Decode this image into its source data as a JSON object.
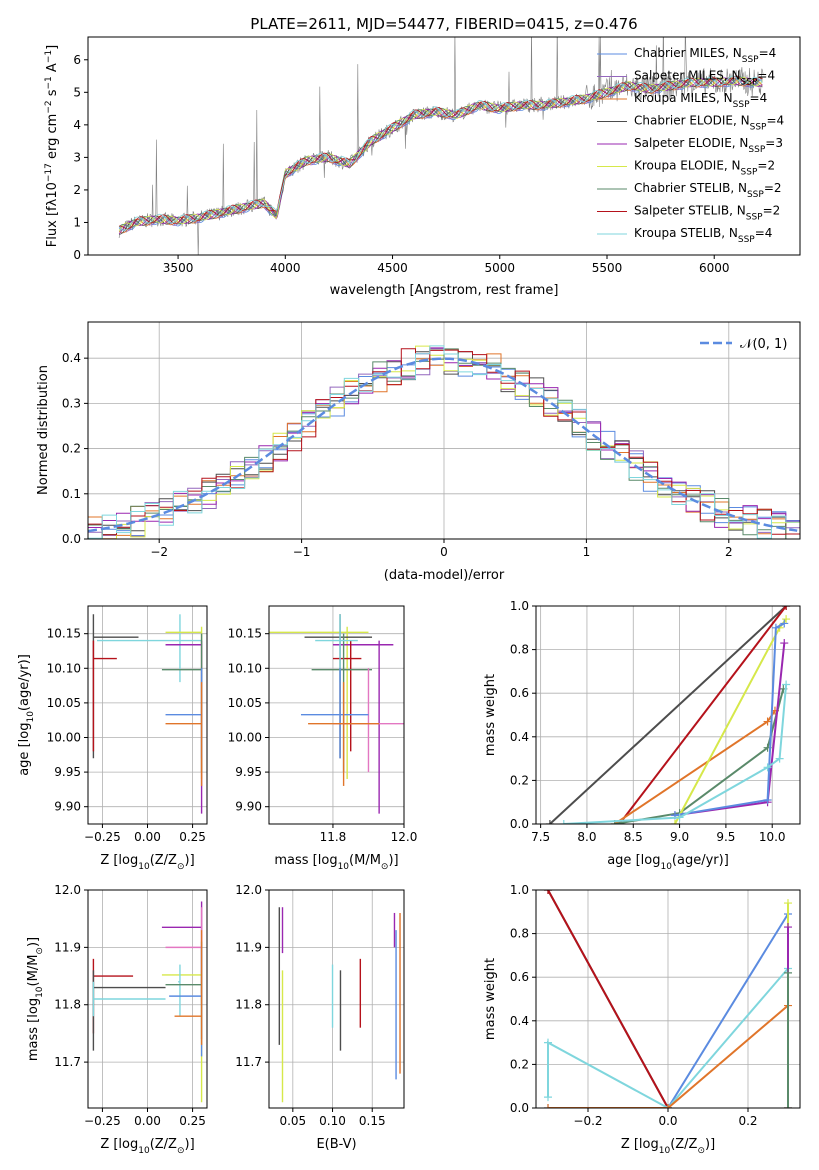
{
  "figure": {
    "title": "PLATE=2611, MJD=54477, FIBERID=0415, z=0.476"
  },
  "colors": {
    "Chabrier MILES": "#5b8be0",
    "Salpeter MILES": "#9467bd",
    "Kroupa MILES": "#e0752a",
    "Chabrier ELODIE": "#4d4d4d",
    "Salpeter ELODIE": "#9a27b0",
    "Kroupa ELODIE": "#d6e84a",
    "Chabrier STELIB": "#5a8a6a",
    "Salpeter STELIB": "#b5121b",
    "Kroupa STELIB": "#7fd6dd",
    "extra_pink": "#e377c2",
    "grid": "#b0b0b0",
    "spectrum": "#808080"
  },
  "chart_data": [
    {
      "type": "line",
      "panel": "spectrum",
      "xlabel": "wavelength [Angstrom, rest frame]",
      "ylabel_parts": [
        "Flux [",
        "f",
        "λ",
        "10",
        "−17",
        " erg cm",
        "−2",
        " s",
        "−1",
        " A",
        "−1",
        "]"
      ],
      "xlim": [
        3080,
        6400
      ],
      "ylim": [
        0,
        6.7
      ],
      "xticks": [
        3500,
        4000,
        4500,
        5000,
        5500,
        6000
      ],
      "yticks": [
        0,
        1,
        2,
        3,
        4,
        5,
        6
      ],
      "grid": false,
      "legend_position": "right",
      "series": [
        {
          "model": "Chabrier MILES",
          "label_main": "Chabrier MILES, N",
          "label_sub": "SSP",
          "label_tail": "=4"
        },
        {
          "model": "Salpeter MILES",
          "label_main": "Salpeter MILES, N",
          "label_sub": "SSP",
          "label_tail": "=4"
        },
        {
          "model": "Kroupa MILES",
          "label_main": "Kroupa MILES, N",
          "label_sub": "SSP",
          "label_tail": "=4"
        },
        {
          "model": "Chabrier ELODIE",
          "label_main": "Chabrier ELODIE, N",
          "label_sub": "SSP",
          "label_tail": "=4"
        },
        {
          "model": "Salpeter ELODIE",
          "label_main": "Salpeter ELODIE, N",
          "label_sub": "SSP",
          "label_tail": "=3"
        },
        {
          "model": "Kroupa ELODIE",
          "label_main": "Kroupa ELODIE, N",
          "label_sub": "SSP",
          "label_tail": "=2"
        },
        {
          "model": "Chabrier STELIB",
          "label_main": "Chabrier STELIB, N",
          "label_sub": "SSP",
          "label_tail": "=2"
        },
        {
          "model": "Salpeter STELIB",
          "label_main": "Salpeter STELIB, N",
          "label_sub": "SSP",
          "label_tail": "=2"
        },
        {
          "model": "Kroupa STELIB",
          "label_main": "Kroupa STELIB, N",
          "label_sub": "SSP",
          "label_tail": "=4"
        }
      ],
      "continuum": [
        [
          3225,
          0.75
        ],
        [
          3300,
          1.0
        ],
        [
          3400,
          1.1
        ],
        [
          3500,
          1.05
        ],
        [
          3600,
          1.15
        ],
        [
          3700,
          1.3
        ],
        [
          3800,
          1.45
        ],
        [
          3900,
          1.6
        ],
        [
          3960,
          1.2
        ],
        [
          4000,
          2.5
        ],
        [
          4100,
          2.9
        ],
        [
          4200,
          3.0
        ],
        [
          4300,
          2.8
        ],
        [
          4400,
          3.5
        ],
        [
          4500,
          3.9
        ],
        [
          4600,
          4.3
        ],
        [
          4700,
          4.4
        ],
        [
          4800,
          4.3
        ],
        [
          4900,
          4.6
        ],
        [
          5000,
          4.5
        ],
        [
          5100,
          4.6
        ],
        [
          5200,
          4.6
        ],
        [
          5300,
          4.7
        ],
        [
          5400,
          4.8
        ],
        [
          5500,
          5.0
        ],
        [
          5600,
          5.2
        ],
        [
          5700,
          5.1
        ],
        [
          5800,
          5.2
        ],
        [
          5900,
          5.3
        ],
        [
          6000,
          5.3
        ],
        [
          6100,
          5.35
        ],
        [
          6200,
          5.3
        ],
        [
          6230,
          5.3
        ]
      ]
    },
    {
      "type": "line",
      "panel": "residual histogram",
      "xlabel": "(data-model)/error",
      "ylabel": "Normed distribution",
      "xlim": [
        -2.5,
        2.5
      ],
      "ylim": [
        0,
        0.48
      ],
      "xticks": [
        -2,
        -1,
        0,
        1,
        2
      ],
      "yticks": [
        0.0,
        0.1,
        0.2,
        0.3,
        0.4
      ],
      "grid": true,
      "legend_position": "top-right",
      "legend_label": "𝒩(0, 1)",
      "bin_width": 0.1,
      "gaussian": {
        "mean": 0,
        "sigma": 1
      }
    },
    {
      "type": "scatter",
      "panel": "age vs metallicity",
      "xlabel_parts": [
        "Z [log",
        "10",
        "(Z/Z",
        "⊙",
        ")]"
      ],
      "ylabel_parts": [
        "age  [log",
        "10",
        "(age/yr)]"
      ],
      "xlim": [
        -0.33,
        0.33
      ],
      "ylim": [
        9.875,
        10.19
      ],
      "xticks": [
        -0.25,
        0.0,
        0.25
      ],
      "xticklabels": [
        "−0.25",
        "0.00",
        "0.25"
      ],
      "yticks": [
        9.9,
        9.95,
        10.0,
        10.05,
        10.1,
        10.15
      ],
      "grid": true,
      "points": [
        {
          "model": "Chabrier ELODIE",
          "x": -0.3,
          "y": 10.145,
          "x_lo": -0.3,
          "x_hi": -0.05,
          "y_lo": 9.97,
          "y_hi": 10.178
        },
        {
          "model": "Salpeter STELIB",
          "x": -0.3,
          "y": 10.114,
          "x_lo": -0.3,
          "x_hi": -0.17,
          "y_lo": 9.98,
          "y_hi": 10.14
        },
        {
          "model": "Kroupa STELIB",
          "x": 0.18,
          "y": 10.14,
          "x_lo": -0.28,
          "x_hi": 0.3,
          "y_lo": 10.08,
          "y_hi": 10.178
        },
        {
          "model": "Kroupa ELODIE",
          "x": 0.3,
          "y": 10.152,
          "x_lo": 0.1,
          "x_hi": 0.3,
          "y_lo": 9.94,
          "y_hi": 10.16
        },
        {
          "model": "Salpeter ELODIE",
          "x": 0.3,
          "y": 10.134,
          "x_lo": 0.1,
          "x_hi": 0.3,
          "y_lo": 9.89,
          "y_hi": 10.14
        },
        {
          "model": "Chabrier STELIB",
          "x": 0.3,
          "y": 10.098,
          "x_lo": 0.08,
          "x_hi": 0.3,
          "y_lo": 9.95,
          "y_hi": 10.15
        },
        {
          "model": "Chabrier MILES",
          "x": 0.3,
          "y": 10.033,
          "x_lo": 0.1,
          "x_hi": 0.3,
          "y_lo": 9.97,
          "y_hi": 10.1
        },
        {
          "model": "Kroupa MILES",
          "x": 0.3,
          "y": 10.02,
          "x_lo": 0.1,
          "x_hi": 0.3,
          "y_lo": 9.93,
          "y_hi": 10.08
        }
      ]
    },
    {
      "type": "scatter",
      "panel": "age vs mass",
      "xlabel_parts": [
        "mass [log",
        "10",
        "(M/M",
        "⊙",
        ")]"
      ],
      "ylabel_parts": [],
      "xlim": [
        11.62,
        12.0
      ],
      "ylim": [
        9.875,
        10.19
      ],
      "xticks": [
        11.8,
        12.0
      ],
      "xticklabels": [
        "11.8",
        "12.0"
      ],
      "yticks": [
        9.9,
        9.95,
        10.0,
        10.05,
        10.1,
        10.15
      ],
      "grid": true,
      "points": [
        {
          "model": "Kroupa ELODIE",
          "x": 11.84,
          "y": 10.152,
          "x_lo": 11.62,
          "x_hi": 11.9,
          "y_lo": 9.94,
          "y_hi": 10.16
        },
        {
          "model": "Chabrier ELODIE",
          "x": 11.82,
          "y": 10.145,
          "x_lo": 11.72,
          "x_hi": 11.91,
          "y_lo": 9.97,
          "y_hi": 10.178
        },
        {
          "model": "Salpeter ELODIE",
          "x": 11.93,
          "y": 10.134,
          "x_lo": 11.8,
          "x_hi": 11.97,
          "y_lo": 9.89,
          "y_hi": 10.14
        },
        {
          "model": "Salpeter STELIB",
          "x": 11.85,
          "y": 10.114,
          "x_lo": 11.8,
          "x_hi": 11.88,
          "y_lo": 9.98,
          "y_hi": 10.14
        },
        {
          "model": "Chabrier STELIB",
          "x": 11.83,
          "y": 10.098,
          "x_lo": 11.74,
          "x_hi": 11.91,
          "y_lo": 9.95,
          "y_hi": 10.15
        },
        {
          "model": "Kroupa STELIB",
          "x": 11.82,
          "y": 10.14,
          "x_lo": 11.75,
          "x_hi": 11.87,
          "y_lo": 10.08,
          "y_hi": 10.178
        },
        {
          "model": "extra_pink",
          "x": 11.9,
          "y": 10.02,
          "x_lo": 11.8,
          "x_hi": 12.0,
          "y_lo": 9.95,
          "y_hi": 10.1
        },
        {
          "model": "Chabrier MILES",
          "x": 11.82,
          "y": 10.033,
          "x_lo": 11.71,
          "x_hi": 11.9,
          "y_lo": 9.97,
          "y_hi": 10.1
        },
        {
          "model": "Kroupa MILES",
          "x": 11.83,
          "y": 10.02,
          "x_lo": 11.73,
          "x_hi": 11.93,
          "y_lo": 9.93,
          "y_hi": 10.08
        }
      ]
    },
    {
      "type": "line",
      "panel": "cumulative mass weight vs age",
      "xlabel_parts": [
        "age  [log",
        "10",
        "(age/yr)]"
      ],
      "ylabel": "mass weight",
      "xlim": [
        7.45,
        10.3
      ],
      "ylim": [
        0,
        1.0
      ],
      "xticks": [
        7.5,
        8.0,
        8.5,
        9.0,
        9.5,
        10.0
      ],
      "xticklabels": [
        "7.5",
        "8.0",
        "8.5",
        "9.0",
        "9.5",
        "10.0"
      ],
      "yticks": [
        0.0,
        0.2,
        0.4,
        0.6,
        0.8,
        1.0
      ],
      "grid": true,
      "series": [
        {
          "model": "Chabrier ELODIE",
          "points": [
            [
              7.6,
              0.0
            ],
            [
              10.15,
              1.0
            ]
          ]
        },
        {
          "model": "Salpeter STELIB",
          "points": [
            [
              8.35,
              0.0
            ],
            [
              10.15,
              1.0
            ]
          ]
        },
        {
          "model": "Kroupa MILES",
          "points": [
            [
              8.3,
              0.0
            ],
            [
              9.95,
              0.47
            ],
            [
              10.03,
              0.52
            ]
          ]
        },
        {
          "model": "Chabrier STELIB",
          "points": [
            [
              8.3,
              0.0
            ],
            [
              9.0,
              0.05
            ],
            [
              9.95,
              0.35
            ],
            [
              10.12,
              0.62
            ]
          ]
        },
        {
          "model": "Kroupa ELODIE",
          "points": [
            [
              8.95,
              0.0
            ],
            [
              10.08,
              0.9
            ],
            [
              10.15,
              0.94
            ]
          ]
        },
        {
          "model": "Salpeter ELODIE",
          "points": [
            [
              8.95,
              0.04
            ],
            [
              9.95,
              0.1
            ],
            [
              10.13,
              0.83
            ]
          ]
        },
        {
          "model": "Chabrier MILES",
          "points": [
            [
              8.95,
              0.04
            ],
            [
              9.95,
              0.11
            ],
            [
              10.04,
              0.9
            ],
            [
              10.13,
              0.92
            ]
          ]
        },
        {
          "model": "Kroupa STELIB",
          "points": [
            [
              7.75,
              0.0
            ],
            [
              9.0,
              0.03
            ],
            [
              9.95,
              0.26
            ],
            [
              10.08,
              0.3
            ],
            [
              10.15,
              0.64
            ]
          ]
        }
      ]
    },
    {
      "type": "scatter",
      "panel": "mass vs metallicity",
      "xlabel_parts": [
        "Z [log",
        "10",
        "(Z/Z",
        "⊙",
        ")]"
      ],
      "ylabel_parts": [
        "mass [log",
        "10",
        "(M/M",
        "⊙",
        ")]"
      ],
      "xlim": [
        -0.33,
        0.33
      ],
      "ylim": [
        11.62,
        12.0
      ],
      "xticks": [
        -0.25,
        0.0,
        0.25
      ],
      "xticklabels": [
        "−0.25",
        "0.00",
        "0.25"
      ],
      "yticks": [
        11.7,
        11.8,
        11.9,
        12.0
      ],
      "grid": true,
      "points": [
        {
          "model": "Salpeter ELODIE",
          "x": 0.3,
          "y": 11.935,
          "x_lo": 0.08,
          "x_hi": 0.3,
          "y_lo": 11.82,
          "y_hi": 11.98
        },
        {
          "model": "extra_pink",
          "x": 0.3,
          "y": 11.9,
          "x_lo": 0.1,
          "x_hi": 0.3,
          "y_lo": 11.8,
          "y_hi": 11.97
        },
        {
          "model": "Salpeter STELIB",
          "x": -0.3,
          "y": 11.85,
          "x_lo": -0.3,
          "x_hi": -0.08,
          "y_lo": 11.75,
          "y_hi": 11.88
        },
        {
          "model": "Kroupa ELODIE",
          "x": 0.3,
          "y": 11.852,
          "x_lo": 0.08,
          "x_hi": 0.3,
          "y_lo": 11.63,
          "y_hi": 11.86
        },
        {
          "model": "Kroupa STELIB",
          "x": 0.18,
          "y": 11.84,
          "x_lo": 0.17,
          "x_hi": 0.18,
          "y_lo": 11.78,
          "y_hi": 11.87
        },
        {
          "model": "Chabrier STELIB",
          "x": 0.3,
          "y": 11.835,
          "x_lo": 0.1,
          "x_hi": 0.3,
          "y_lo": 11.74,
          "y_hi": 11.91
        },
        {
          "model": "Chabrier ELODIE",
          "x": -0.3,
          "y": 11.83,
          "x_lo": -0.3,
          "x_hi": 0.1,
          "y_lo": 11.72,
          "y_hi": 11.86
        },
        {
          "model": "Chabrier MILES",
          "x": 0.3,
          "y": 11.815,
          "x_lo": 0.12,
          "x_hi": 0.3,
          "y_lo": 11.71,
          "y_hi": 11.9
        },
        {
          "model": "Kroupa STELIB",
          "x": -0.3,
          "y": 11.81,
          "x_lo": -0.3,
          "x_hi": 0.1,
          "y_lo": 11.78,
          "y_hi": 11.84
        },
        {
          "model": "Kroupa MILES",
          "x": 0.3,
          "y": 11.78,
          "x_lo": 0.15,
          "x_hi": 0.3,
          "y_lo": 11.73,
          "y_hi": 11.93
        }
      ]
    },
    {
      "type": "scatter",
      "panel": "mass vs extinction",
      "xlabel": "E(B-V)",
      "ylabel_parts": [],
      "xlim": [
        0.02,
        0.19
      ],
      "ylim": [
        11.62,
        12.0
      ],
      "xticks": [
        0.05,
        0.1,
        0.15
      ],
      "xticklabels": [
        "0.05",
        "0.10",
        "0.15"
      ],
      "yticks": [
        11.7,
        11.8,
        11.9,
        12.0
      ],
      "grid": true,
      "points": [
        {
          "model": "Chabrier ELODIE",
          "x": 0.033,
          "y": 11.85,
          "y_lo": 11.73,
          "y_hi": 11.97
        },
        {
          "model": "Salpeter ELODIE",
          "x": 0.037,
          "y": 11.93,
          "y_lo": 11.89,
          "y_hi": 11.97
        },
        {
          "model": "Kroupa ELODIE",
          "x": 0.037,
          "y": 11.74,
          "y_lo": 11.63,
          "y_hi": 11.86
        },
        {
          "model": "Kroupa STELIB",
          "x": 0.1,
          "y": 11.81,
          "y_lo": 11.76,
          "y_hi": 11.87
        },
        {
          "model": "Chabrier ELODIE",
          "x": 0.11,
          "y": 11.79,
          "y_lo": 11.72,
          "y_hi": 11.86
        },
        {
          "model": "Salpeter STELIB",
          "x": 0.135,
          "y": 11.82,
          "y_lo": 11.76,
          "y_hi": 11.88
        },
        {
          "model": "Chabrier MILES",
          "x": 0.18,
          "y": 11.8,
          "y_lo": 11.67,
          "y_hi": 11.93
        },
        {
          "model": "Kroupa MILES",
          "x": 0.185,
          "y": 11.8,
          "y_lo": 11.68,
          "y_hi": 11.96
        },
        {
          "model": "Salpeter ELODIE",
          "x": 0.178,
          "y": 11.93,
          "y_lo": 11.9,
          "y_hi": 11.96
        }
      ]
    },
    {
      "type": "line",
      "panel": "mass weight vs metallicity",
      "xlabel_parts": [
        "Z [log",
        "10",
        "(Z/Z",
        "⊙",
        ")]"
      ],
      "ylabel": "mass weight",
      "xlim": [
        -0.33,
        0.33
      ],
      "ylim": [
        0,
        1.0
      ],
      "xticks": [
        -0.2,
        0.0,
        0.2
      ],
      "xticklabels": [
        "−0.2",
        "0.0",
        "0.2"
      ],
      "yticks": [
        0.0,
        0.2,
        0.4,
        0.6,
        0.8,
        1.0
      ],
      "grid": true,
      "series": [
        {
          "model": "Chabrier ELODIE",
          "points": [
            [
              -0.3,
              1.0
            ],
            [
              0.0,
              0.0
            ]
          ]
        },
        {
          "model": "Salpeter STELIB",
          "points": [
            [
              -0.3,
              1.0
            ],
            [
              0.0,
              0.0
            ]
          ]
        },
        {
          "model": "Chabrier MILES",
          "points": [
            [
              -0.3,
              0.0
            ],
            [
              0.0,
              0.0
            ],
            [
              0.3,
              0.89
            ]
          ]
        },
        {
          "model": "Kroupa STELIB",
          "points": [
            [
              -0.3,
              0.05
            ],
            [
              -0.3,
              0.3
            ],
            [
              0.0,
              0.0
            ],
            [
              0.3,
              0.64
            ]
          ]
        },
        {
          "model": "Kroupa MILES",
          "points": [
            [
              -0.3,
              0.0
            ],
            [
              0.0,
              0.0
            ],
            [
              0.3,
              0.47
            ]
          ]
        },
        {
          "model": "Kroupa ELODIE",
          "points": [
            [
              0.3,
              0.0
            ],
            [
              0.3,
              0.94
            ]
          ]
        },
        {
          "model": "Salpeter ELODIE",
          "points": [
            [
              0.3,
              0.0
            ],
            [
              0.3,
              0.83
            ]
          ]
        },
        {
          "model": "Chabrier STELIB",
          "points": [
            [
              0.3,
              0.0
            ],
            [
              0.3,
              0.62
            ]
          ]
        }
      ]
    }
  ]
}
